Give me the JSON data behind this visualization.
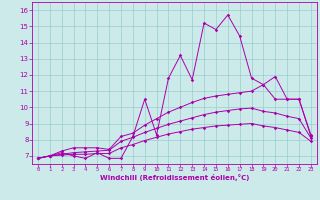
{
  "xlabel": "Windchill (Refroidissement éolien,°C)",
  "xlim": [
    -0.5,
    23.5
  ],
  "ylim": [
    6.5,
    16.5
  ],
  "xticks": [
    0,
    1,
    2,
    3,
    4,
    5,
    6,
    7,
    8,
    9,
    10,
    11,
    12,
    13,
    14,
    15,
    16,
    17,
    18,
    19,
    20,
    21,
    22,
    23
  ],
  "yticks": [
    7,
    8,
    9,
    10,
    11,
    12,
    13,
    14,
    15,
    16
  ],
  "background_color": "#cceaea",
  "line_color": "#aa00aa",
  "grid_color": "#99cccc",
  "line1_x": [
    0,
    1,
    2,
    3,
    4,
    5,
    6,
    7,
    8,
    9,
    10,
    11,
    12,
    13,
    14,
    15,
    16,
    17,
    18,
    19,
    20,
    21,
    22,
    23
  ],
  "line1_y": [
    6.85,
    7.0,
    7.2,
    7.0,
    6.85,
    7.2,
    6.85,
    6.85,
    8.2,
    10.5,
    8.3,
    11.8,
    13.2,
    11.7,
    15.2,
    14.8,
    15.7,
    14.4,
    11.8,
    11.4,
    11.9,
    10.5,
    10.5,
    8.2
  ],
  "line2_x": [
    0,
    1,
    2,
    3,
    4,
    5,
    6,
    7,
    8,
    9,
    10,
    11,
    12,
    13,
    14,
    15,
    16,
    17,
    18,
    19,
    20,
    21,
    22,
    23
  ],
  "line2_y": [
    6.85,
    7.0,
    7.3,
    7.5,
    7.5,
    7.5,
    7.4,
    8.2,
    8.4,
    8.9,
    9.3,
    9.7,
    10.0,
    10.3,
    10.55,
    10.7,
    10.8,
    10.9,
    11.0,
    11.4,
    10.5,
    10.5,
    10.5,
    8.3
  ],
  "line3_x": [
    0,
    1,
    2,
    3,
    4,
    5,
    6,
    7,
    8,
    9,
    10,
    11,
    12,
    13,
    14,
    15,
    16,
    17,
    18,
    19,
    20,
    21,
    22,
    23
  ],
  "line3_y": [
    6.85,
    7.0,
    7.1,
    7.2,
    7.25,
    7.3,
    7.35,
    7.9,
    8.15,
    8.45,
    8.7,
    8.95,
    9.15,
    9.35,
    9.55,
    9.7,
    9.8,
    9.9,
    9.95,
    9.75,
    9.65,
    9.45,
    9.3,
    8.1
  ],
  "line4_x": [
    0,
    1,
    2,
    3,
    4,
    5,
    6,
    7,
    8,
    9,
    10,
    11,
    12,
    13,
    14,
    15,
    16,
    17,
    18,
    19,
    20,
    21,
    22,
    23
  ],
  "line4_y": [
    6.85,
    7.0,
    7.05,
    7.1,
    7.1,
    7.15,
    7.15,
    7.5,
    7.7,
    7.95,
    8.15,
    8.35,
    8.5,
    8.65,
    8.75,
    8.85,
    8.9,
    8.95,
    9.0,
    8.85,
    8.75,
    8.6,
    8.45,
    7.9
  ]
}
